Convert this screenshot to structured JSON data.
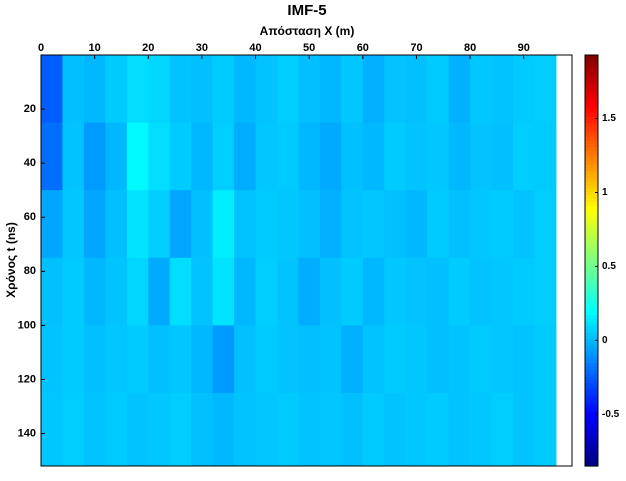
{
  "chart_data": {
    "type": "heatmap",
    "title": "IMF-5",
    "x_label": "Απόσταση X (m)",
    "y_label": "Χρόνος t (ns)",
    "xlim": [
      0,
      99
    ],
    "ylim": [
      0,
      152
    ],
    "y_reversed": true,
    "x_axis_position": "top",
    "xticks": [
      0,
      10,
      20,
      30,
      40,
      50,
      60,
      70,
      80,
      90
    ],
    "yticks": [
      20,
      40,
      60,
      80,
      100,
      120,
      140
    ],
    "colormap": "jet",
    "clim": [
      -0.85,
      1.93
    ],
    "cticks": [
      -0.5,
      0,
      0.5,
      1,
      1.5
    ],
    "xbins": [
      0,
      4,
      8,
      12,
      16,
      20,
      24,
      28,
      32,
      36,
      40,
      44,
      48,
      52,
      56,
      60,
      64,
      68,
      72,
      76,
      80,
      84,
      88,
      92,
      96
    ],
    "ybins": [
      0,
      25,
      50,
      75,
      100,
      125,
      152
    ],
    "z": [
      [
        -0.25,
        0.02,
        0.0,
        0.05,
        0.1,
        0.08,
        0.03,
        0.02,
        0.05,
        0.0,
        0.03,
        0.06,
        0.02,
        0.0,
        0.04,
        -0.02,
        0.03,
        0.02,
        0.05,
        -0.02,
        0.04,
        0.03,
        0.05,
        0.06
      ],
      [
        -0.2,
        0.03,
        -0.08,
        0.0,
        0.18,
        0.1,
        0.05,
        0.0,
        0.06,
        -0.03,
        0.04,
        0.05,
        0.0,
        -0.04,
        0.02,
        0.0,
        0.05,
        0.03,
        0.04,
        0.0,
        0.03,
        0.02,
        0.06,
        0.05
      ],
      [
        -0.05,
        0.04,
        -0.05,
        0.02,
        0.12,
        0.06,
        -0.05,
        0.02,
        0.15,
        0.03,
        0.05,
        0.04,
        0.02,
        -0.02,
        0.03,
        0.04,
        0.02,
        0.0,
        0.05,
        0.02,
        0.04,
        0.05,
        0.03,
        0.06
      ],
      [
        0.02,
        0.05,
        0.0,
        0.03,
        0.08,
        -0.04,
        0.1,
        0.03,
        0.12,
        0.0,
        0.06,
        0.03,
        -0.03,
        0.02,
        0.05,
        0.0,
        0.04,
        0.03,
        0.02,
        0.05,
        0.03,
        0.04,
        0.05,
        0.06
      ],
      [
        0.03,
        0.05,
        0.02,
        0.04,
        0.05,
        0.02,
        0.04,
        0.0,
        -0.08,
        0.02,
        0.05,
        0.03,
        0.02,
        0.03,
        -0.02,
        0.03,
        0.05,
        0.04,
        0.02,
        0.03,
        0.05,
        0.04,
        0.03,
        0.05
      ],
      [
        0.04,
        0.06,
        0.03,
        0.05,
        0.03,
        0.04,
        0.06,
        0.02,
        0.0,
        0.03,
        0.04,
        0.05,
        0.03,
        0.04,
        0.02,
        0.05,
        0.03,
        0.04,
        0.05,
        0.03,
        0.04,
        0.06,
        0.03,
        0.05
      ]
    ]
  }
}
